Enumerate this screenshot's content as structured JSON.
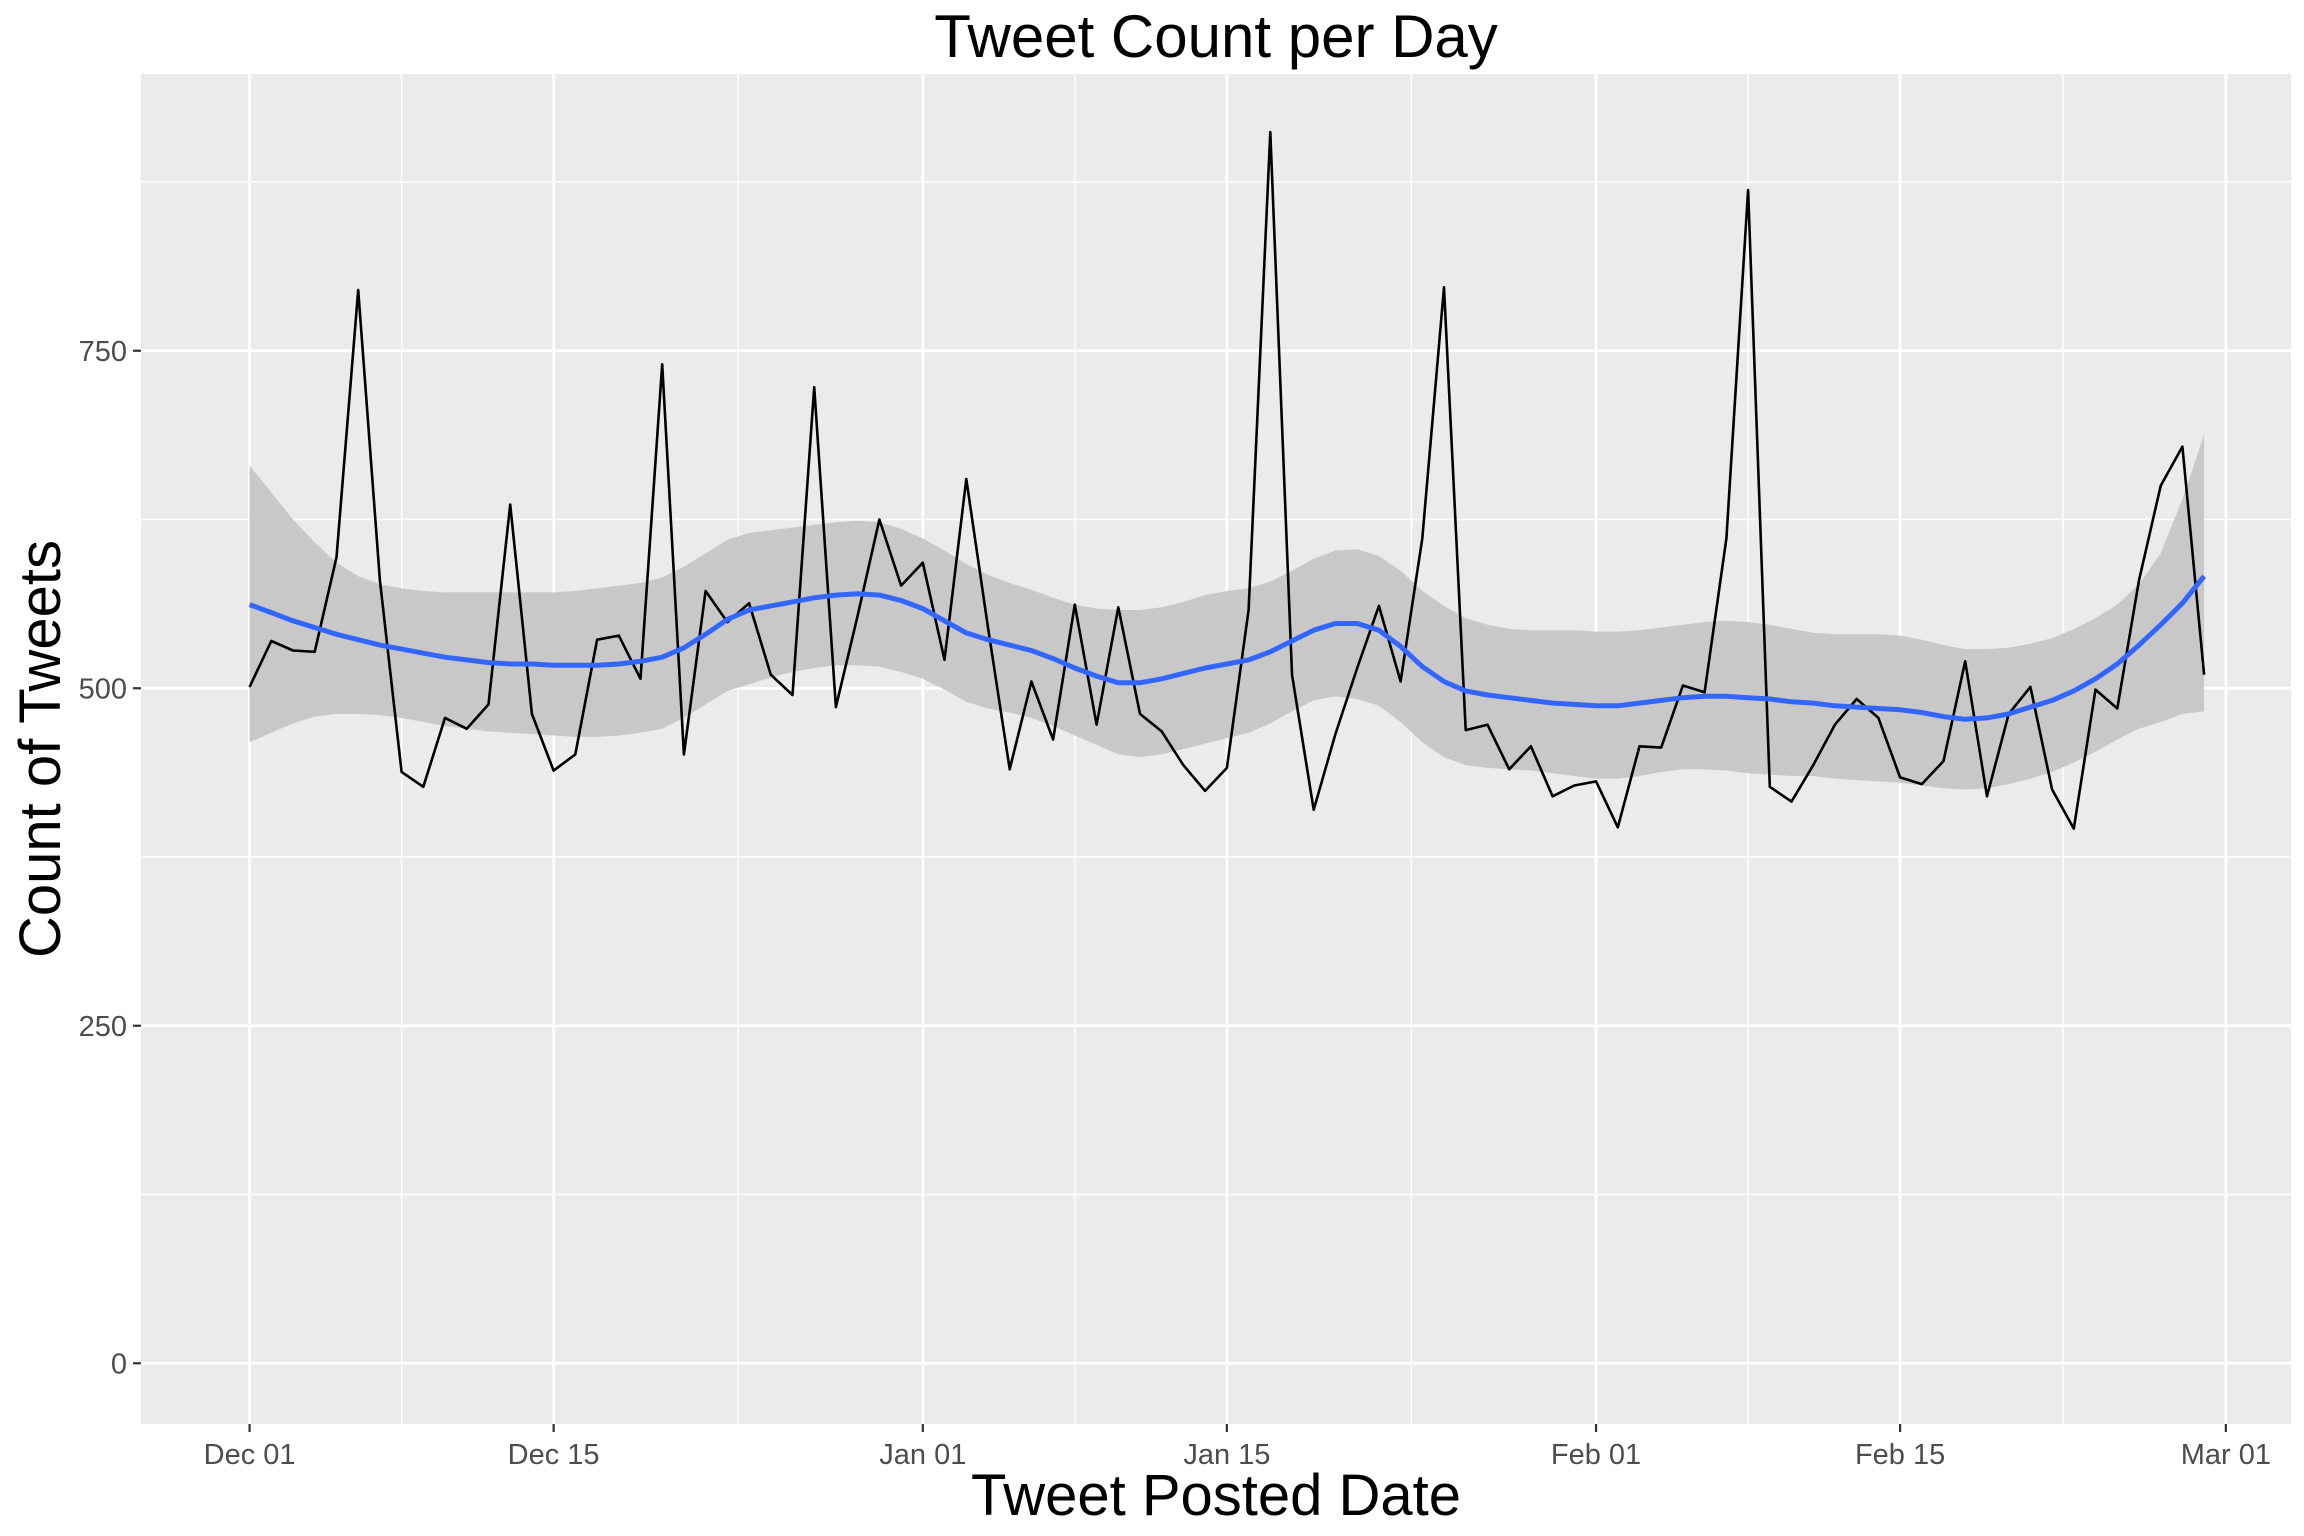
{
  "chart_data": {
    "type": "line",
    "title": "Tweet Count per Day",
    "xlabel": "Tweet Posted Date",
    "ylabel": "Count of Tweets",
    "x_start": "2019-12-01",
    "x_ticks": [
      {
        "date": "2019-12-01",
        "label": "Dec 01"
      },
      {
        "date": "2019-12-15",
        "label": "Dec 15"
      },
      {
        "date": "2020-01-01",
        "label": "Jan 01"
      },
      {
        "date": "2020-01-15",
        "label": "Jan 15"
      },
      {
        "date": "2020-02-01",
        "label": "Feb 01"
      },
      {
        "date": "2020-02-15",
        "label": "Feb 15"
      },
      {
        "date": "2020-03-01",
        "label": "Mar 01"
      }
    ],
    "y_ticks": [
      0,
      250,
      500,
      750
    ],
    "ylim": [
      -45,
      955
    ],
    "xlim": [
      "2019-11-26",
      "2020-03-04"
    ],
    "grid": true,
    "colors": {
      "panel_background": "#ebebeb",
      "grid": "#ffffff",
      "daily_line": "#000000",
      "smooth_line": "#3366ff",
      "confidence_band": "#c8c8c8"
    },
    "series": [
      {
        "kind": "daily",
        "values": [
          501,
          535,
          528,
          527,
          597,
          795,
          580,
          438,
          427,
          478,
          470,
          488,
          636,
          481,
          439,
          451,
          536,
          539,
          507,
          740,
          451,
          572,
          549,
          563,
          510,
          495,
          723,
          486,
          554,
          625,
          576,
          593,
          521,
          655,
          545,
          440,
          505,
          462,
          562,
          473,
          560,
          481,
          468,
          443,
          424,
          441,
          558,
          912,
          510,
          410,
          466,
          515,
          561,
          505,
          611,
          797,
          469,
          473,
          440,
          457,
          420,
          428,
          431,
          397,
          457,
          456,
          502,
          497,
          611,
          869,
          427,
          416,
          443,
          473,
          492,
          478,
          434,
          429,
          446,
          520,
          420,
          481,
          501,
          425,
          396,
          499,
          485,
          580,
          650,
          679,
          510
        ]
      },
      {
        "kind": "smooth",
        "values": [
          562,
          556,
          550,
          545,
          540,
          536,
          532,
          529,
          526,
          523,
          521,
          519,
          518,
          518,
          517,
          517,
          517,
          518,
          520,
          523,
          530,
          540,
          551,
          558,
          561,
          564,
          567,
          569,
          570,
          569,
          565,
          559,
          550,
          541,
          536,
          532,
          528,
          522,
          515,
          509,
          504,
          504,
          507,
          511,
          515,
          518,
          521,
          527,
          535,
          543,
          548,
          548,
          543,
          531,
          516,
          505,
          498,
          495,
          493,
          491,
          489,
          488,
          487,
          487,
          489,
          491,
          493,
          494,
          494,
          493,
          492,
          490,
          489,
          487,
          486,
          485,
          484,
          482,
          479,
          477,
          478,
          481,
          486,
          491,
          498,
          507,
          518,
          532,
          547,
          563,
          583
        ],
        "upper": [
          665,
          645,
          625,
          608,
          593,
          583,
          577,
          574,
          572,
          571,
          571,
          571,
          571,
          571,
          571,
          572,
          574,
          576,
          578,
          582,
          590,
          600,
          610,
          615,
          617,
          619,
          621,
          623,
          624,
          623,
          618,
          611,
          602,
          592,
          584,
          578,
          573,
          567,
          562,
          559,
          558,
          558,
          560,
          564,
          569,
          572,
          574,
          579,
          587,
          596,
          602,
          603,
          598,
          587,
          572,
          561,
          552,
          547,
          544,
          543,
          543,
          543,
          542,
          542,
          543,
          545,
          547,
          549,
          550,
          549,
          547,
          544,
          541,
          540,
          540,
          540,
          539,
          536,
          532,
          529,
          529,
          530,
          533,
          537,
          544,
          552,
          562,
          577,
          600,
          640,
          688
        ],
        "lower": [
          460,
          467,
          474,
          479,
          481,
          481,
          480,
          478,
          475,
          472,
          470,
          468,
          467,
          466,
          465,
          464,
          464,
          465,
          467,
          470,
          478,
          488,
          498,
          503,
          508,
          512,
          515,
          517,
          517,
          516,
          512,
          507,
          499,
          490,
          485,
          482,
          478,
          472,
          465,
          458,
          451,
          449,
          451,
          455,
          459,
          463,
          467,
          474,
          483,
          491,
          494,
          492,
          487,
          475,
          460,
          449,
          443,
          441,
          440,
          439,
          437,
          435,
          433,
          433,
          435,
          438,
          440,
          440,
          439,
          437,
          436,
          435,
          435,
          433,
          432,
          431,
          430,
          428,
          426,
          425,
          426,
          429,
          433,
          438,
          445,
          453,
          462,
          470,
          475,
          481,
          483
        ]
      }
    ]
  }
}
